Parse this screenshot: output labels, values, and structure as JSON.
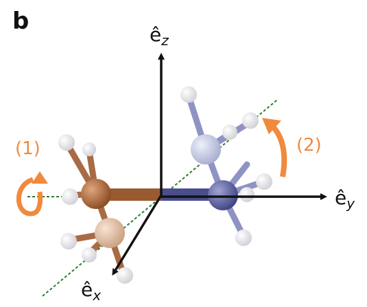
{
  "panel_label": "b",
  "axes": {
    "z": {
      "symbol": "ê",
      "subscript": "z"
    },
    "y": {
      "symbol": "ê",
      "subscript": "y"
    },
    "x": {
      "symbol": "ê",
      "subscript": "x"
    }
  },
  "rotations": {
    "first": "(1)",
    "second": "(2)"
  }
}
